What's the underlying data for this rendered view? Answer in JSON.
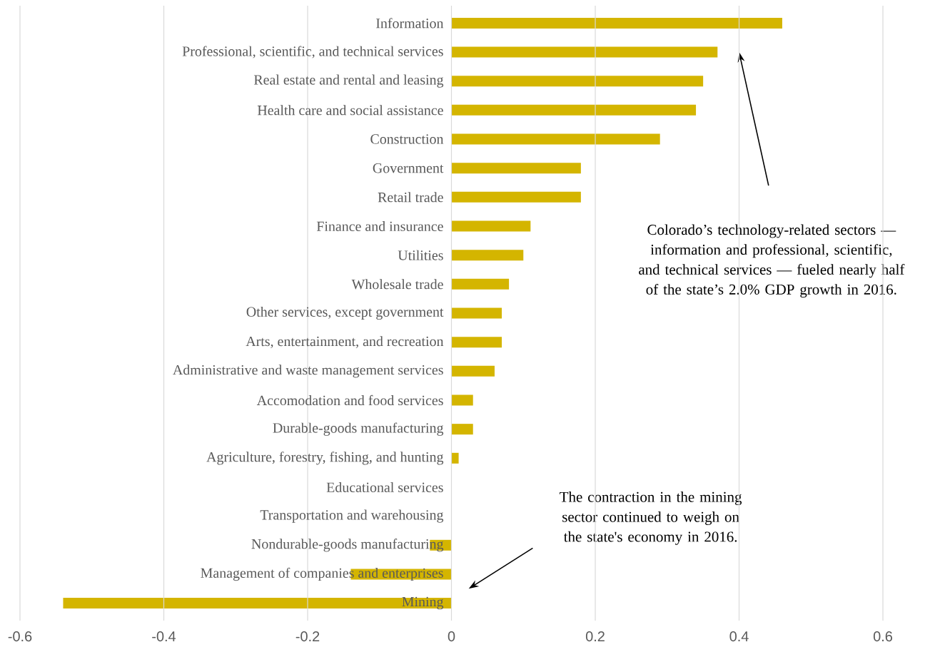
{
  "chart_data": {
    "type": "bar",
    "orientation": "horizontal",
    "color": "#d4b500",
    "categories": [
      "Information",
      "Professional, scientific, and technical services",
      "Real estate and rental and leasing",
      "Health care and social assistance",
      "Construction",
      "Government",
      "Retail trade",
      "Finance and insurance",
      "Utilities",
      "Wholesale trade",
      "Other services, except government",
      "Arts, entertainment, and recreation",
      "Administrative and waste management services",
      "Accomodation and food services",
      "Durable-goods manufacturing",
      "Agriculture, forestry, fishing, and hunting",
      "Educational services",
      "Transportation and warehousing",
      "Nondurable-goods manufacturing",
      "Management of companies and enterprises",
      "Mining"
    ],
    "values": [
      0.46,
      0.37,
      0.35,
      0.34,
      0.29,
      0.18,
      0.18,
      0.11,
      0.1,
      0.08,
      0.07,
      0.07,
      0.06,
      0.03,
      0.03,
      0.01,
      0,
      0,
      -0.03,
      -0.14,
      -0.54
    ],
    "xlim": [
      -0.6,
      0.6
    ],
    "xticks": [
      -0.6,
      -0.4,
      -0.2,
      0,
      0.2,
      0.4,
      0.6
    ],
    "grid": "x",
    "annotations": [
      "Colorado’s technology-related sectors — information and professional, scientific, and technical services — fueled nearly half of the state’s 2.0% GDP growth in 2016.",
      "The contraction in the mining sector continued to weigh on the state's economy in 2016."
    ]
  }
}
